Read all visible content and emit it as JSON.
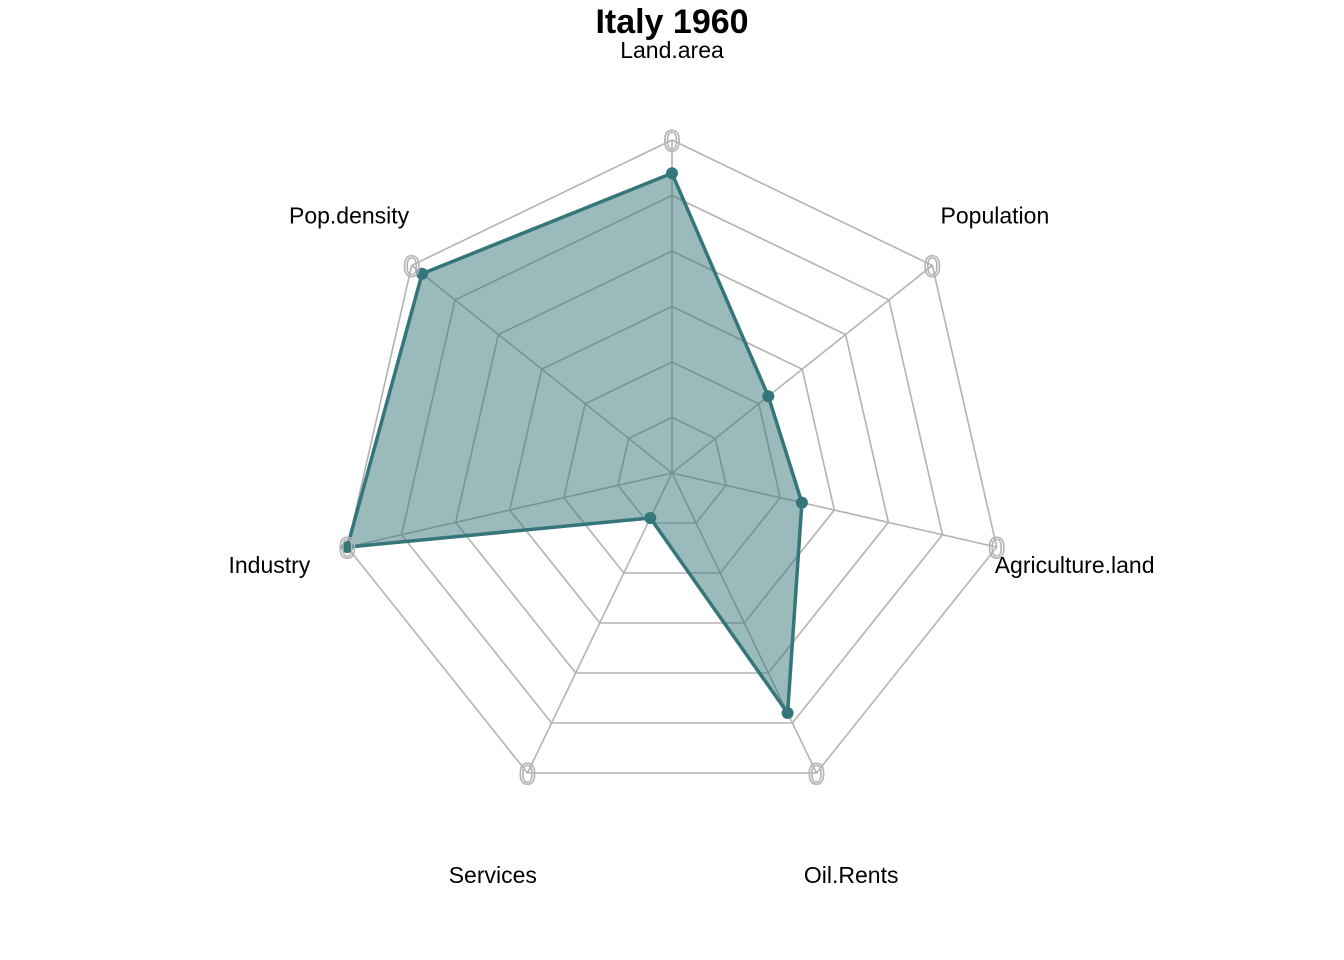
{
  "chart_data": {
    "type": "radar",
    "title": "Italy 1960",
    "axes": [
      "Land.area",
      "Population",
      "Agriculture.land",
      "Oil.Rents",
      "Services",
      "Industry",
      "Pop.density"
    ],
    "series": [
      {
        "name": "Italy 1960",
        "values": [
          0.9,
          0.37,
          0.4,
          0.8,
          0.15,
          1.0,
          0.96
        ]
      }
    ],
    "range": [
      0,
      1
    ],
    "grid_levels": 6,
    "axis_tick_label": "0",
    "colors": {
      "line": "#35767a",
      "fill": "#35767a",
      "fill_opacity": 0.5,
      "grid": "#b3b3b3"
    }
  }
}
